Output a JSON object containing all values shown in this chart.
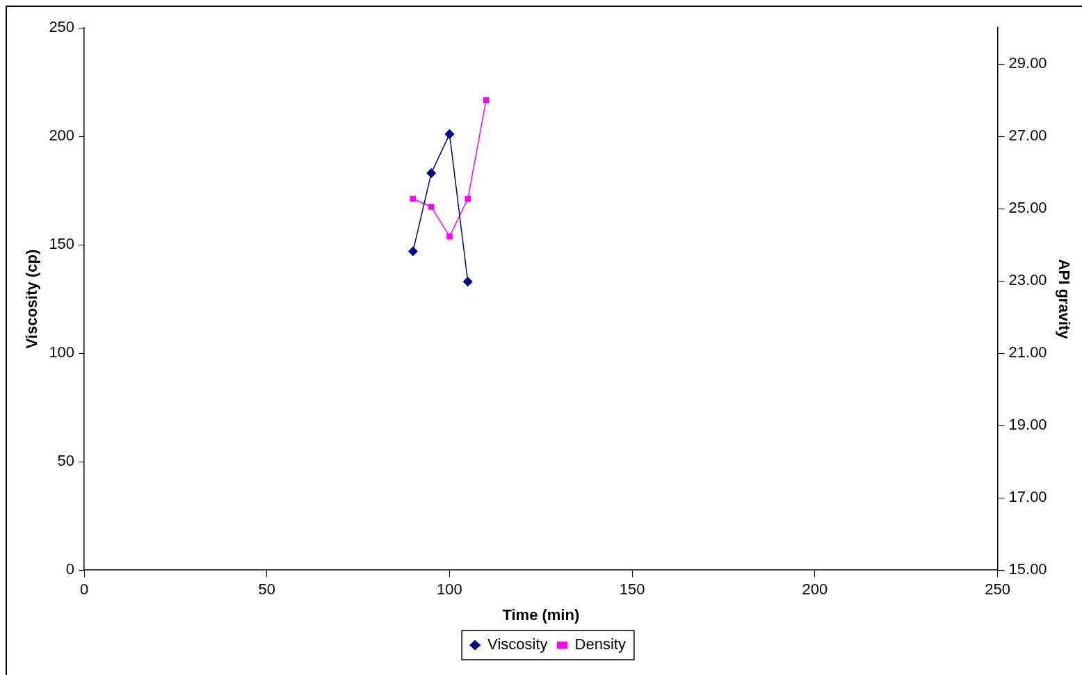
{
  "chart_data": {
    "type": "line",
    "xlabel": "Time (min)",
    "ylabel": "Viscosity (cp)",
    "y2label": "API gravity",
    "xlim": [
      0,
      250
    ],
    "xticks": [
      0,
      50,
      100,
      150,
      200,
      250
    ],
    "ylim": [
      0,
      250
    ],
    "yticks": [
      0,
      50,
      100,
      150,
      200,
      250
    ],
    "y2lim": [
      15,
      30
    ],
    "y2ticks": [
      {
        "value": 15,
        "label": "15.00"
      },
      {
        "value": 17,
        "label": "17.00"
      },
      {
        "value": 19,
        "label": "19.00"
      },
      {
        "value": 21,
        "label": "21.00"
      },
      {
        "value": 23,
        "label": "23.00"
      },
      {
        "value": 25,
        "label": "25.00"
      },
      {
        "value": 27,
        "label": "27.00"
      },
      {
        "value": 29,
        "label": "29.00"
      }
    ],
    "grid": false,
    "legend": "bottom",
    "series": [
      {
        "name": "Viscosity",
        "color": "#000080",
        "marker": "diamond",
        "x": [
          90,
          95,
          100,
          105
        ],
        "values": [
          147,
          183,
          201,
          133
        ]
      },
      {
        "name": "Density",
        "color": "#ff00ff",
        "marker": "square",
        "axis": "y2",
        "x": [
          90,
          95,
          100,
          105,
          110
        ],
        "values": [
          25.27,
          25.05,
          24.23,
          25.27,
          28.0
        ]
      }
    ]
  }
}
